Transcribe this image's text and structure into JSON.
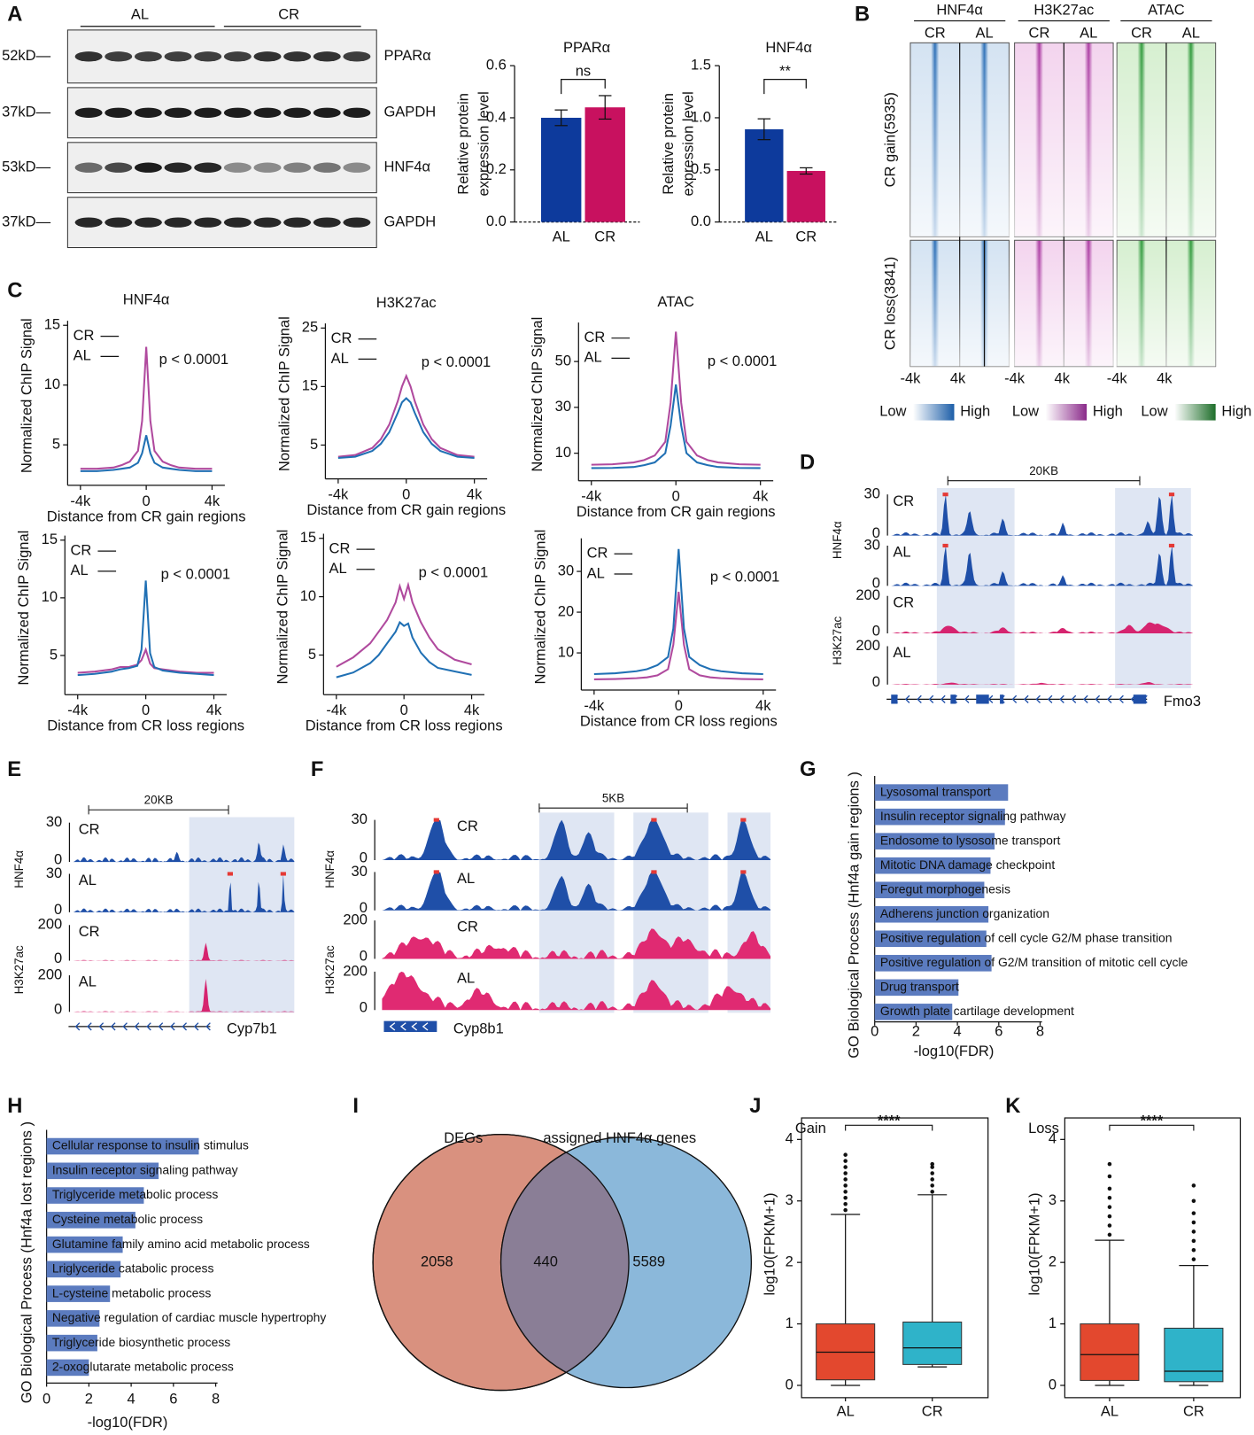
{
  "panel_labels": [
    "A",
    "B",
    "C",
    "D",
    "E",
    "F",
    "G",
    "H",
    "I",
    "J",
    "K"
  ],
  "western_blot": {
    "groups": [
      "AL",
      "CR"
    ],
    "rows": [
      {
        "marker": "52kD—",
        "protein": "PPARα"
      },
      {
        "marker": "37kD—",
        "protein": "GAPDH"
      },
      {
        "marker": "53kD—",
        "protein": "HNF4α"
      },
      {
        "marker": "37kD—",
        "protein": "GAPDH"
      }
    ]
  },
  "heatmap": {
    "marks": [
      "HNF4α",
      "H3K27ac",
      "ATAC"
    ],
    "conditions": [
      "CR",
      "AL"
    ],
    "row_groups": [
      "CR gain(5935)",
      "CR loss(3841)"
    ],
    "x_labels": [
      "-4k",
      "4k"
    ],
    "legend": [
      "Low",
      "High"
    ]
  },
  "tracks": [
    {
      "scale": "20KB",
      "gene": "Fmo3",
      "groups": [
        {
          "name": "HNF4α",
          "tracks": [
            {
              "condition": "CR",
              "ymax": 30,
              "ymin": 0
            },
            {
              "condition": "AL",
              "ymax": 30,
              "ymin": 0
            }
          ]
        },
        {
          "name": "H3K27ac",
          "tracks": [
            {
              "condition": "CR",
              "ymax": 200,
              "ymin": 0
            },
            {
              "condition": "AL",
              "ymax": 200,
              "ymin": 0
            }
          ]
        }
      ]
    },
    {
      "scale": "20KB",
      "gene": "Cyp7b1",
      "groups": [
        {
          "name": "HNF4α",
          "tracks": [
            {
              "condition": "CR",
              "ymax": 30,
              "ymin": 0
            },
            {
              "condition": "AL",
              "ymax": 30,
              "ymin": 0
            }
          ]
        },
        {
          "name": "H3K27ac",
          "tracks": [
            {
              "condition": "CR",
              "ymax": 200,
              "ymin": 0
            },
            {
              "condition": "AL",
              "ymax": 200,
              "ymin": 0
            }
          ]
        }
      ]
    },
    {
      "scale": "5KB",
      "gene": "Cyp8b1",
      "groups": [
        {
          "name": "HNF4α",
          "tracks": [
            {
              "condition": "CR",
              "ymax": 30,
              "ymin": 0
            },
            {
              "condition": "AL",
              "ymax": 30,
              "ymin": 0
            }
          ]
        },
        {
          "name": "H3K27ac",
          "tracks": [
            {
              "condition": "CR",
              "ymax": 200,
              "ymin": 0
            },
            {
              "condition": "AL",
              "ymax": 200,
              "ymin": 0
            }
          ]
        }
      ]
    }
  ],
  "chart_data": [
    {
      "type": "bar",
      "title": "PPARα",
      "ylabel": [
        "Relative protein",
        "expression level"
      ],
      "categories": [
        "AL",
        "CR"
      ],
      "values": [
        0.4,
        0.44
      ],
      "errors": [
        0.03,
        0.045
      ],
      "colors": [
        "#0d3a9c",
        "#c8115f"
      ],
      "ylim": [
        0,
        0.6
      ],
      "yticks": [
        {
          "value": 0,
          "label": "0.0"
        },
        0.2,
        0.4,
        0.6
      ],
      "significance": "ns"
    },
    {
      "type": "bar",
      "title": "HNF4α",
      "ylabel": [
        "Relative protein",
        "expression level"
      ],
      "categories": [
        "AL",
        "CR"
      ],
      "values": [
        0.89,
        0.49
      ],
      "errors": [
        0.1,
        0.03
      ],
      "colors": [
        "#0d3a9c",
        "#c8115f"
      ],
      "ylim": [
        0,
        1.5
      ],
      "yticks": [
        {
          "value": 0,
          "label": "0.0"
        },
        0.5,
        {
          "value": 1,
          "label": "1.0"
        },
        1.5
      ],
      "significance": "**"
    },
    {
      "type": "line",
      "title": "HNF4α",
      "xlabel": "Distance from CR gain regions",
      "ylabel": "Normalized ChIP Signal",
      "annotation": "p < 0.0001",
      "x": [
        -4,
        -3,
        -2,
        -1.5,
        -1,
        -0.5,
        -0.25,
        0,
        0.25,
        0.5,
        1,
        1.5,
        2,
        3,
        4
      ],
      "series": [
        {
          "name": "CR",
          "color": "#b04a9e",
          "values": [
            3.0,
            3.0,
            3.1,
            3.3,
            3.6,
            4.5,
            7,
            13.2,
            7,
            4.5,
            3.6,
            3.3,
            3.1,
            3.0,
            3.0
          ]
        },
        {
          "name": "AL",
          "color": "#2070b4",
          "values": [
            2.8,
            2.8,
            2.9,
            3.0,
            3.1,
            3.5,
            4.3,
            5.8,
            4.3,
            3.5,
            3.1,
            3.0,
            2.9,
            2.8,
            2.8
          ]
        }
      ],
      "xlim": [
        -4,
        4
      ],
      "xticks": [
        {
          "value": -4,
          "label": "-4k"
        },
        0,
        {
          "value": 4,
          "label": "4k"
        }
      ],
      "ylim": [
        2,
        15
      ],
      "yticks": [
        5,
        10,
        15
      ],
      "legend": "upper left"
    },
    {
      "type": "line",
      "title": "H3K27ac",
      "xlabel": "Distance from CR gain regions",
      "ylabel": "Normalized ChIP Signal",
      "annotation": "p < 0.0001",
      "x": [
        -4,
        -3,
        -2,
        -1.5,
        -1,
        -0.5,
        -0.25,
        0,
        0.25,
        0.5,
        1,
        1.5,
        2,
        3,
        4
      ],
      "series": [
        {
          "name": "CR",
          "color": "#b04a9e",
          "values": [
            3.0,
            3.3,
            4.5,
            6,
            8.5,
            12.5,
            15,
            16.8,
            15,
            12.5,
            8.5,
            6,
            4.5,
            3.3,
            3.0
          ]
        },
        {
          "name": "AL",
          "color": "#2070b4",
          "values": [
            2.8,
            3.0,
            4,
            5.2,
            7.2,
            10.5,
            12.3,
            13,
            12.3,
            10.5,
            7.2,
            5.2,
            4,
            3.0,
            2.8
          ]
        }
      ],
      "xlim": [
        -4,
        4
      ],
      "xticks": [
        {
          "value": -4,
          "label": "-4k"
        },
        0,
        {
          "value": 4,
          "label": "4k"
        }
      ],
      "ylim": [
        0,
        25
      ],
      "yticks": [
        5,
        15,
        25
      ],
      "legend": "upper left"
    },
    {
      "type": "line",
      "title": "ATAC",
      "xlabel": "Distance from CR gain regions",
      "ylabel": "Normalized ChIP Signal",
      "annotation": "p < 0.0001",
      "x": [
        -4,
        -3,
        -2,
        -1.5,
        -1,
        -0.5,
        -0.25,
        0,
        0.25,
        0.5,
        1,
        1.5,
        2,
        3,
        4
      ],
      "series": [
        {
          "name": "CR",
          "color": "#b04a9e",
          "values": [
            5,
            5.2,
            6,
            7,
            9,
            15,
            32,
            63,
            32,
            15,
            9,
            7,
            6,
            5.2,
            5
          ]
        },
        {
          "name": "AL",
          "color": "#2070b4",
          "values": [
            3.5,
            3.6,
            4,
            4.8,
            6,
            10,
            22,
            40,
            22,
            10,
            6,
            4.8,
            4,
            3.6,
            3.5
          ]
        }
      ],
      "xlim": [
        -4,
        4
      ],
      "xticks": [
        {
          "value": -4,
          "label": "-4k"
        },
        0,
        {
          "value": 4,
          "label": "4k"
        }
      ],
      "ylim": [
        0,
        65
      ],
      "yticks": [
        10,
        30,
        50
      ],
      "legend": "upper left"
    },
    {
      "type": "line",
      "xlabel": "Distance from CR loss regions",
      "ylabel": "Normalized ChIP Signal",
      "annotation": "p < 0.0001",
      "x": [
        -4,
        -3,
        -2,
        -1.5,
        -1,
        -0.5,
        -0.25,
        0,
        0.25,
        0.5,
        1,
        1.5,
        2,
        3,
        4
      ],
      "series": [
        {
          "name": "CR",
          "color": "#b04a9e",
          "values": [
            3.5,
            3.6,
            3.8,
            4,
            4,
            4.2,
            4.6,
            5.5,
            4.3,
            3.9,
            3.8,
            3.7,
            3.6,
            3.5,
            3.5
          ]
        },
        {
          "name": "AL",
          "color": "#2070b4",
          "values": [
            3.3,
            3.4,
            3.6,
            3.8,
            3.9,
            4.1,
            5.5,
            11.5,
            5.2,
            4,
            3.7,
            3.6,
            3.5,
            3.4,
            3.3
          ]
        }
      ],
      "xlim": [
        -4,
        4
      ],
      "xticks": [
        {
          "value": -4,
          "label": "-4k"
        },
        0,
        {
          "value": 4,
          "label": "4k"
        }
      ],
      "ylim": [
        2,
        15
      ],
      "yticks": [
        5,
        10,
        15
      ],
      "legend": "upper left"
    },
    {
      "type": "line",
      "xlabel": "Distance from CR loss regions",
      "ylabel": "Normalized ChIP Signal",
      "annotation": "p < 0.0001",
      "x": [
        -4,
        -3,
        -2,
        -1.5,
        -1,
        -0.5,
        -0.25,
        0,
        0.25,
        0.5,
        1,
        1.5,
        2,
        3,
        4
      ],
      "series": [
        {
          "name": "CR",
          "color": "#b04a9e",
          "values": [
            4,
            4.8,
            6,
            7,
            8,
            9.5,
            10.9,
            9.8,
            11,
            9.5,
            7.8,
            6.5,
            5.5,
            4.6,
            4.2
          ]
        },
        {
          "name": "AL",
          "color": "#2070b4",
          "values": [
            3.1,
            3.5,
            4.3,
            5,
            6,
            7,
            7.8,
            7.5,
            7.7,
            6.5,
            5.2,
            4.4,
            3.9,
            3.6,
            3.3
          ]
        }
      ],
      "xlim": [
        -4,
        4
      ],
      "xticks": [
        {
          "value": -4,
          "label": "-4k"
        },
        0,
        {
          "value": 4,
          "label": "4k"
        }
      ],
      "ylim": [
        2,
        15
      ],
      "yticks": [
        5,
        10,
        15
      ],
      "legend": "upper left"
    },
    {
      "type": "line",
      "xlabel": "Distance from CR loss regions",
      "ylabel": "Normalized ChIP Signal",
      "annotation": "p < 0.0001",
      "x": [
        -4,
        -3,
        -2,
        -1.5,
        -1,
        -0.5,
        -0.25,
        0,
        0.25,
        0.5,
        1,
        1.5,
        2,
        3,
        4
      ],
      "series": [
        {
          "name": "CR",
          "color": "#b04a9e",
          "values": [
            3.5,
            3.6,
            3.8,
            4,
            4.5,
            6,
            12,
            25,
            12,
            6,
            4.5,
            4,
            3.8,
            3.6,
            3.5
          ]
        },
        {
          "name": "AL",
          "color": "#2070b4",
          "values": [
            4.8,
            5,
            5.5,
            6,
            7,
            9,
            16,
            35.5,
            16,
            9,
            7,
            6,
            5.5,
            5,
            4.8
          ]
        }
      ],
      "xlim": [
        -4,
        4
      ],
      "xticks": [
        {
          "value": -4,
          "label": "-4k"
        },
        0,
        {
          "value": 4,
          "label": "4k"
        }
      ],
      "ylim": [
        2,
        37
      ],
      "yticks": [
        10,
        20,
        30
      ],
      "legend": "upper left"
    },
    {
      "type": "hbar",
      "ylabel": "GO Biological Process (Hnf4a gain regions )",
      "xlabel": "-log10(FDR)",
      "categories": [
        "Lysosomal transport",
        "Insulin receptor signaling pathway",
        "Endosome to lysosome transport",
        "Mitotic DNA damage checkpoint",
        "Foregut morphogenesis",
        "Adherens junction organization",
        "Positive regulation of cell cycle G2/M phase transition",
        "Positive regulation of G2/M transition of mitotic cell cycle",
        "Drug transport",
        "Growth plate cartilage development"
      ],
      "values": [
        6.45,
        6.3,
        5.8,
        5.6,
        5.3,
        5.5,
        5.4,
        5.65,
        4.05,
        3.75
      ],
      "color": "#5b7bbf",
      "xlim": [
        0,
        8
      ],
      "xticks": [
        0,
        2,
        4,
        6,
        8
      ]
    },
    {
      "type": "hbar",
      "ylabel": "GO Biological Process (Hnf4a lost regions )",
      "xlabel": "-log10(FDR)",
      "categories": [
        "Cellular response to insulin stimulus",
        "Insulin receptor signaling pathway",
        "Triglyceride metabolic process",
        "Cysteine metabolic process",
        "Glutamine family amino acid metabolic process",
        "Lriglyceride catabolic process",
        "L-cysteine metabolic process",
        "Negative regulation of cardiac muscle hypertrophy",
        "Triglyceride biosynthetic process",
        "2-oxoglutarate metabolic process"
      ],
      "values": [
        7.2,
        5.3,
        4.6,
        4.2,
        3.6,
        3.5,
        3.0,
        2.5,
        2.4,
        2.0
      ],
      "color": "#5b7bbf",
      "xlim": [
        0,
        8
      ],
      "xticks": [
        0,
        2,
        4,
        6,
        8
      ]
    },
    {
      "type": "venn",
      "sets": [
        {
          "name": "DEGs",
          "color": "#d9917f"
        },
        {
          "name": "assigned HNF4α genes",
          "color": "#8bb8da"
        }
      ],
      "values": [
        2058,
        440,
        5589
      ],
      "overlap_color": "#8a7e96"
    },
    {
      "type": "box",
      "title": "Gain",
      "ylabel": "log10(FPKM+1)",
      "categories": [
        "AL",
        "CR"
      ],
      "colors": [
        "#e3482e",
        "#2fb3c9"
      ],
      "boxes": [
        {
          "min": 0,
          "q1": 0.09,
          "median": 0.54,
          "q3": 1.0,
          "max": 2.78,
          "outliers": [
            2.85,
            2.95,
            3.05,
            3.15,
            3.25,
            3.35,
            3.45,
            3.55,
            3.65,
            3.75
          ]
        },
        {
          "min": 0.3,
          "q1": 0.34,
          "median": 0.61,
          "q3": 1.03,
          "max": 3.1,
          "outliers": [
            3.15,
            3.25,
            3.35,
            3.45,
            3.55,
            3.6
          ]
        }
      ],
      "ylim": [
        -0.2,
        4.35
      ],
      "yticks": [
        0,
        1,
        2,
        3,
        4
      ],
      "significance": "****"
    },
    {
      "type": "box",
      "title": "Loss",
      "ylabel": "log10(FPKM+1)",
      "categories": [
        "AL",
        "CR"
      ],
      "colors": [
        "#e3482e",
        "#2fb3c9"
      ],
      "boxes": [
        {
          "min": 0,
          "q1": 0.08,
          "median": 0.5,
          "q3": 1.0,
          "max": 2.36,
          "outliers": [
            2.45,
            2.6,
            2.75,
            2.9,
            3.05,
            3.2,
            3.4,
            3.6
          ]
        },
        {
          "min": 0,
          "q1": 0.06,
          "median": 0.23,
          "q3": 0.93,
          "max": 1.95,
          "outliers": [
            2.05,
            2.2,
            2.35,
            2.5,
            2.65,
            2.8,
            3.0,
            3.25
          ]
        }
      ],
      "ylim": [
        -0.2,
        4.35
      ],
      "yticks": [
        0,
        1,
        2,
        3,
        4
      ],
      "significance": "****"
    }
  ]
}
